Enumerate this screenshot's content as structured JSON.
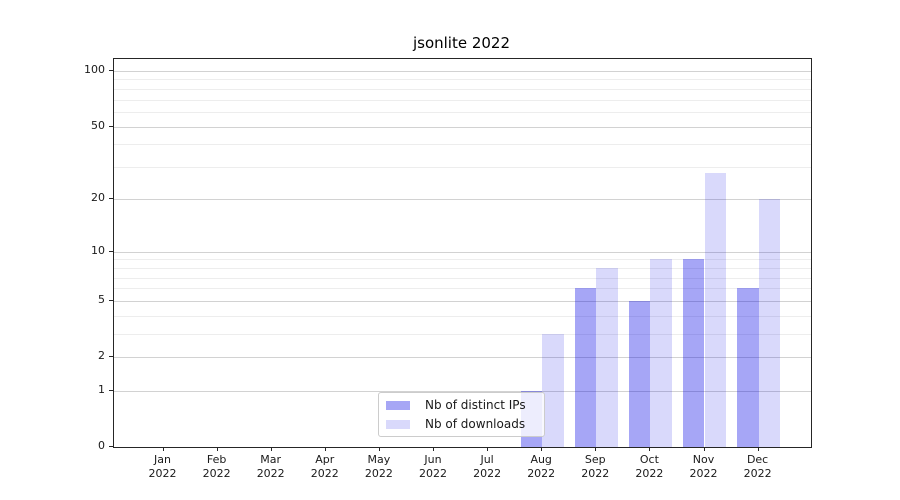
{
  "title": "jsonlite 2022",
  "year_label": "2022",
  "colors": {
    "bar_distinct_ips": "rgba(0,0,230,0.35)",
    "bar_distinct_ips_hex": "#a6a6f5",
    "bar_downloads": "rgba(0,0,230,0.15)",
    "bar_downloads_hex": "#d9d9fb",
    "grid_major": "#d2d2d2",
    "grid_minor": "#ededed",
    "frame": "#262626"
  },
  "chart_data": {
    "type": "bar",
    "title": "jsonlite 2022",
    "categories": [
      "Jan 2022",
      "Feb 2022",
      "Mar 2022",
      "Apr 2022",
      "May 2022",
      "Jun 2022",
      "Jul 2022",
      "Aug 2022",
      "Sep 2022",
      "Oct 2022",
      "Nov 2022",
      "Dec 2022"
    ],
    "months": [
      "Jan",
      "Feb",
      "Mar",
      "Apr",
      "May",
      "Jun",
      "Jul",
      "Aug",
      "Sep",
      "Oct",
      "Nov",
      "Dec"
    ],
    "series": [
      {
        "name": "Nb of distinct IPs",
        "values": [
          0,
          0,
          0,
          0,
          0,
          0,
          0,
          1,
          6,
          5,
          9,
          6
        ]
      },
      {
        "name": "Nb of downloads",
        "values": [
          0,
          0,
          0,
          0,
          0,
          0,
          0,
          3,
          8,
          9,
          28,
          20
        ]
      }
    ],
    "xlabel": "",
    "ylabel": "",
    "yscale": "log1p",
    "ylim": [
      0,
      116
    ],
    "y_major_ticks": [
      100,
      50,
      20,
      10,
      5,
      2,
      1,
      0
    ],
    "y_minor_gridlines": [
      3,
      4,
      6,
      7,
      8,
      9,
      30,
      40,
      60,
      70,
      80,
      90
    ],
    "grid": "on",
    "legend_position": "inside-bottom-center"
  }
}
